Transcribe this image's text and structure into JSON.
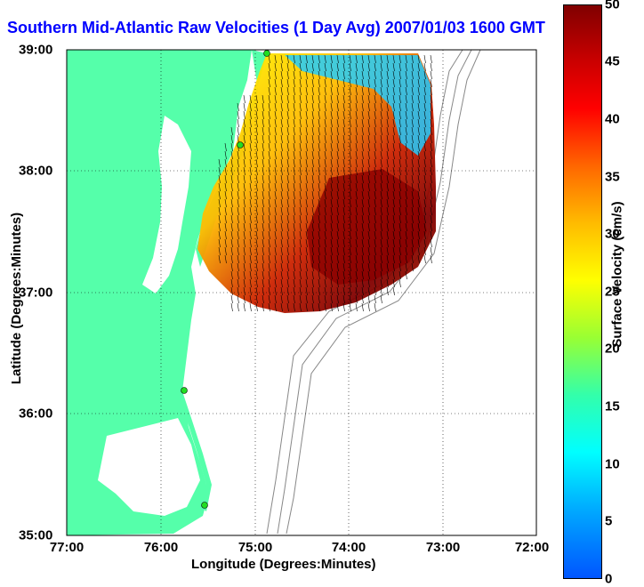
{
  "title": "Southern Mid-Atlantic Raw Velocities (1 Day Avg) 2007/01/03 1600 GMT",
  "xlabel": "Longitude (Degrees:Minutes)",
  "ylabel": "Latitude (Degrees:Minutes)",
  "x_ticks": [
    "77:00",
    "76:00",
    "75:00",
    "74:00",
    "73:00",
    "72:00"
  ],
  "y_ticks": [
    "39:00",
    "38:00",
    "37:00",
    "36:00",
    "35:00"
  ],
  "colorbar": {
    "label": "Surface Velocity (cm/s)",
    "ticks": [
      "50",
      "45",
      "40",
      "35",
      "30",
      "25",
      "20",
      "15",
      "10",
      "5",
      "0"
    ]
  },
  "colors": {
    "land": "#55ffaa",
    "water": "#ffffff",
    "title": "#0000ff",
    "station": "#22dd22"
  }
}
